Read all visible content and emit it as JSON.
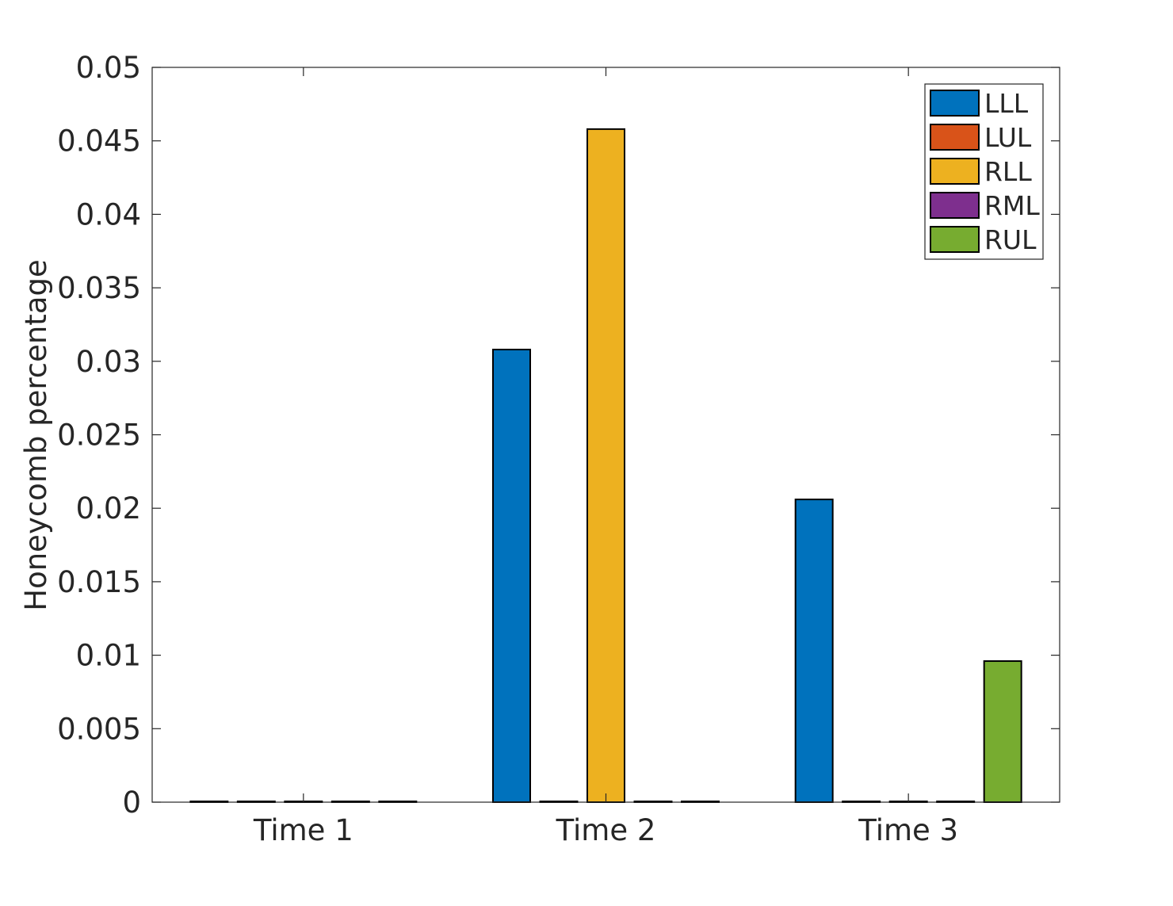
{
  "chart_data": {
    "type": "bar",
    "title": "",
    "xlabel": "",
    "ylabel": "Honeycomb percentage",
    "categories": [
      "Time 1",
      "Time 2",
      "Time 3"
    ],
    "ylim": [
      0,
      0.05
    ],
    "yticks": [
      0,
      0.005,
      0.01,
      0.015,
      0.02,
      0.025,
      0.03,
      0.035,
      0.04,
      0.045,
      0.05
    ],
    "ytick_labels": [
      "0",
      "0.005",
      "0.01",
      "0.015",
      "0.02",
      "0.025",
      "0.03",
      "0.035",
      "0.04",
      "0.045",
      "0.05"
    ],
    "grid": false,
    "legend_position": "top-right",
    "series": [
      {
        "name": "LLL",
        "color": "#0072BD",
        "values": [
          0,
          0.0308,
          0.0206
        ]
      },
      {
        "name": "LUL",
        "color": "#D95319",
        "values": [
          0,
          0,
          0
        ]
      },
      {
        "name": "RLL",
        "color": "#EDB120",
        "values": [
          0,
          0.0458,
          0
        ]
      },
      {
        "name": "RML",
        "color": "#7E2F8E",
        "values": [
          0,
          0,
          0
        ]
      },
      {
        "name": "RUL",
        "color": "#77AC30",
        "values": [
          0,
          0,
          0.0096
        ]
      }
    ]
  }
}
